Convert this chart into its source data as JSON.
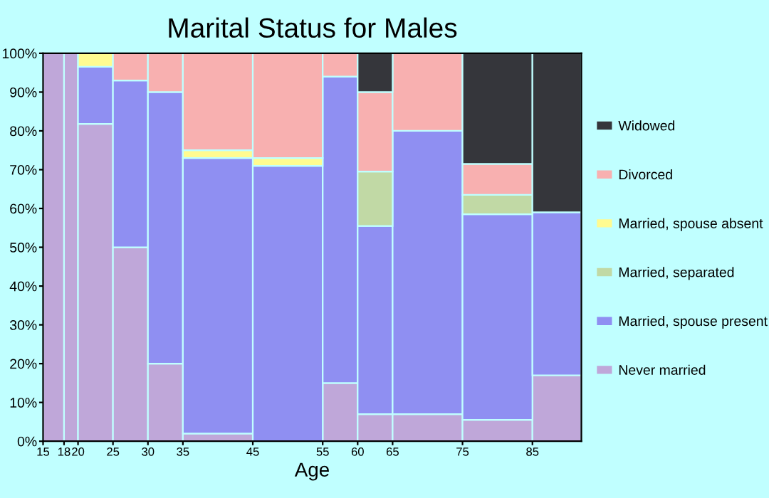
{
  "chart_data": {
    "type": "bar",
    "stacked": true,
    "title": "Marital Status for Males",
    "xlabel": "Age",
    "x": [
      16.5,
      19,
      22.5,
      27.5,
      32.5,
      40,
      50,
      57.5,
      62.5,
      70,
      80,
      88.5
    ],
    "xlim": [
      15,
      92
    ],
    "xticks": [
      15,
      18,
      20,
      25,
      30,
      35,
      45,
      55,
      60,
      65,
      75,
      85
    ],
    "ylim": [
      0,
      100
    ],
    "yticks": [
      {
        "value": 0,
        "label": "0%"
      },
      {
        "value": 10,
        "label": "10%"
      },
      {
        "value": 20,
        "label": "20%"
      },
      {
        "value": 30,
        "label": "30%"
      },
      {
        "value": 40,
        "label": "40%"
      },
      {
        "value": 50,
        "label": "50%"
      },
      {
        "value": 60,
        "label": "60%"
      },
      {
        "value": 70,
        "label": "70%"
      },
      {
        "value": 80,
        "label": "80%"
      },
      {
        "value": 90,
        "label": "90%"
      },
      {
        "value": 100,
        "label": "100%"
      }
    ],
    "legend": "right",
    "grid": false,
    "series": [
      {
        "name": "Never married",
        "color": "#bfa7d9",
        "values": [
          100,
          100,
          81.8,
          50,
          20,
          2,
          0,
          15,
          7,
          7,
          5.5,
          17
        ]
      },
      {
        "name": "Married, spouse present",
        "color": "#8f8ff2",
        "values": [
          0,
          0,
          14.7,
          43,
          70,
          71,
          71,
          79,
          48.5,
          73,
          53,
          42
        ]
      },
      {
        "name": "Married, separated",
        "color": "#c1d9a5",
        "values": [
          0,
          0,
          0,
          0,
          0,
          0,
          0,
          0,
          14,
          0,
          5,
          0
        ]
      },
      {
        "name": "Married, spouse absent",
        "color": "#fffb90",
        "values": [
          0,
          0,
          3.5,
          0,
          0,
          2,
          2,
          0,
          0,
          0,
          0,
          0
        ]
      },
      {
        "name": "Divorced",
        "color": "#f8b0b0",
        "values": [
          0,
          0,
          0,
          7,
          10,
          25,
          27,
          6,
          20.5,
          20,
          8,
          0
        ]
      },
      {
        "name": "Widowed",
        "color": "#35363b",
        "values": [
          0,
          0,
          0,
          0,
          0,
          0,
          0,
          0,
          10,
          0,
          28.5,
          41
        ]
      }
    ]
  }
}
